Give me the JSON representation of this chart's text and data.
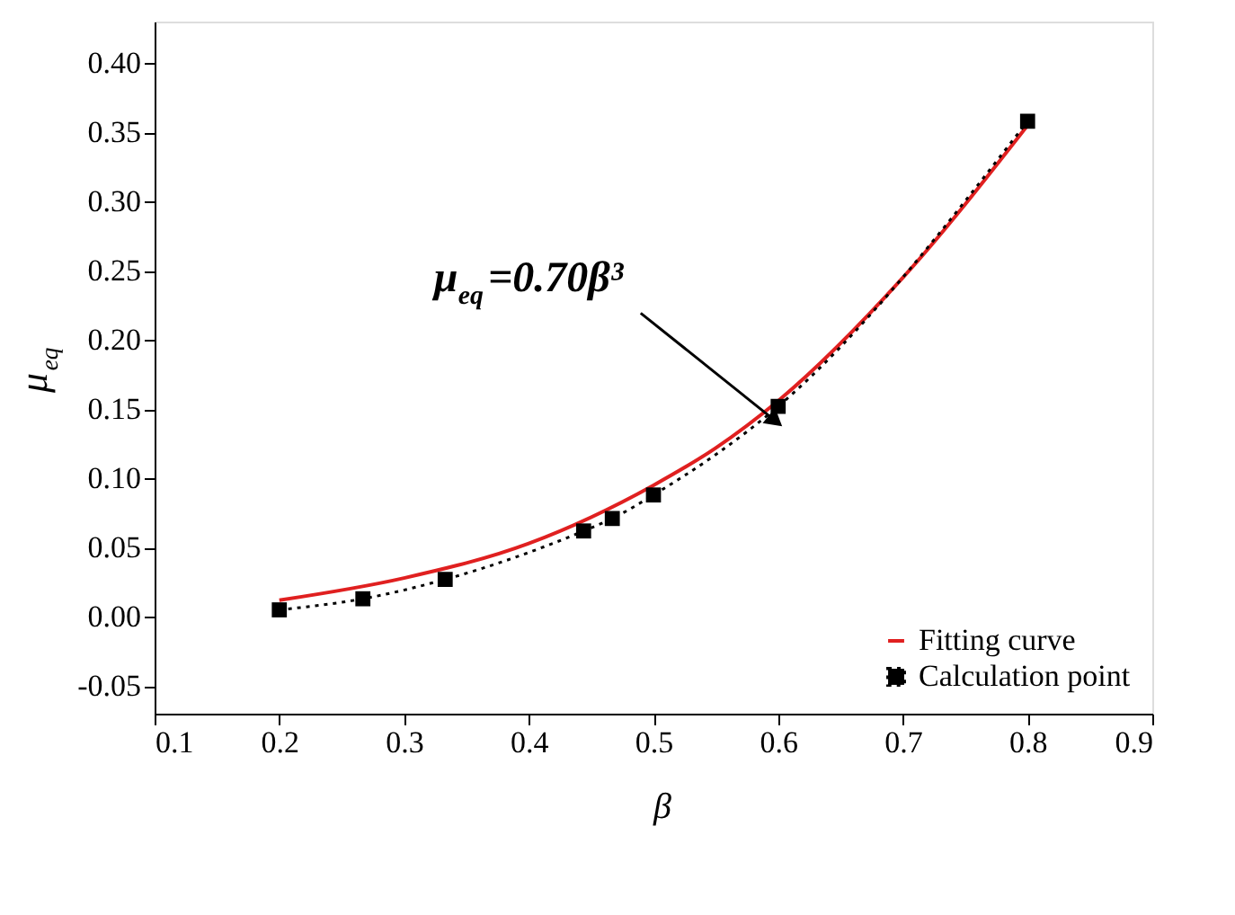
{
  "chart_data": {
    "type": "line",
    "xlabel": "β",
    "ylabel": "μ$_{eq}$",
    "xlim": [
      0.1,
      0.9
    ],
    "ylim": [
      -0.07,
      0.43
    ],
    "xticks": [
      0.1,
      0.2,
      0.3,
      0.4,
      0.5,
      0.6,
      0.7,
      0.8,
      0.9
    ],
    "yticks": [
      {
        "value": -0.05,
        "label": "-0.05"
      },
      {
        "value": 0,
        "label": "0.00"
      },
      {
        "value": 0.05,
        "label": "0.05"
      },
      {
        "value": 0.1,
        "label": "0.10"
      },
      {
        "value": 0.15,
        "label": "0.15"
      },
      {
        "value": 0.2,
        "label": "0.20"
      },
      {
        "value": 0.25,
        "label": "0.25"
      },
      {
        "value": 0.3,
        "label": "0.30"
      },
      {
        "value": 0.35,
        "label": "0.35"
      },
      {
        "value": 0.4,
        "label": "0.40"
      }
    ],
    "grid": false,
    "legend": "bottom right",
    "annotations": [
      "μ$_{eq}$=0.70β³"
    ],
    "series": [
      {
        "name": "Fitting curve",
        "color": "#e02020",
        "line_style": "solid",
        "marker": "none",
        "x": [
          0.2,
          0.3,
          0.4,
          0.5,
          0.55,
          0.6,
          0.7,
          0.8
        ],
        "values": [
          0.012,
          0.028,
          0.053,
          0.095,
          0.122,
          0.156,
          0.245,
          0.355
        ]
      },
      {
        "name": "Calculation point",
        "color": "#000000",
        "line_style": "dotted",
        "marker": "square",
        "x": [
          0.2,
          0.267,
          0.333,
          0.444,
          0.467,
          0.5,
          0.6,
          0.8
        ],
        "values": [
          0.005,
          0.013,
          0.027,
          0.062,
          0.071,
          0.088,
          0.152,
          0.358
        ]
      }
    ]
  }
}
